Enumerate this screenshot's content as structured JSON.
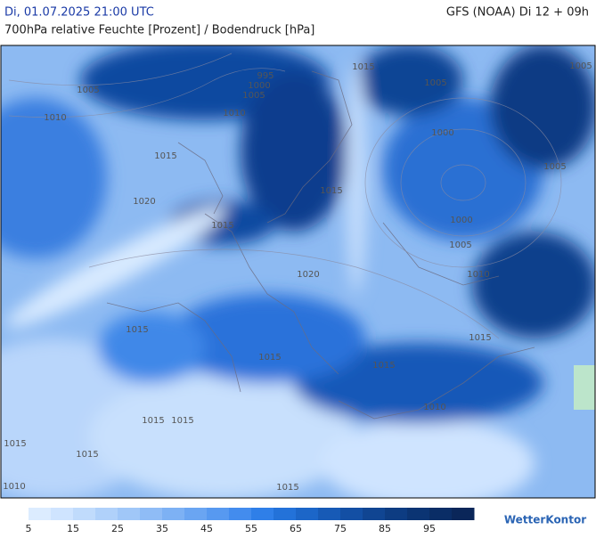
{
  "header": {
    "datetime": "Di, 01.07.2025 21:00 UTC",
    "model": "GFS (NOAA) Di 12 + 09h",
    "subtitle": "700hPa relative Feuchte [Prozent] / Bodendruck [hPa]"
  },
  "isobar_labels": [
    "995",
    "1000",
    "1005",
    "1005",
    "1010",
    "1010",
    "1015",
    "1015",
    "1005",
    "1005",
    "1000",
    "1005",
    "1000",
    "1005",
    "1010",
    "1020",
    "1015",
    "1015",
    "1020",
    "1015",
    "1015",
    "1015",
    "1015",
    "1010",
    "1015",
    "1015",
    "1015",
    "1015",
    "1010",
    "1015"
  ],
  "colorbar": {
    "colors": [
      "#dcecff",
      "#cfe4ff",
      "#c0dbfc",
      "#b0d1fa",
      "#a0c7f8",
      "#8fbcf6",
      "#7db1f4",
      "#6aa5f2",
      "#5799f0",
      "#438cee",
      "#2f7fe8",
      "#2372d9",
      "#1c66c8",
      "#175ab6",
      "#134fa4",
      "#104592",
      "#0d3c82",
      "#0b3473",
      "#0a2d66",
      "#0a2659"
    ],
    "labels": [
      "5",
      "15",
      "25",
      "35",
      "45",
      "55",
      "65",
      "75",
      "85",
      "95"
    ]
  },
  "logo": "WetterKontor"
}
